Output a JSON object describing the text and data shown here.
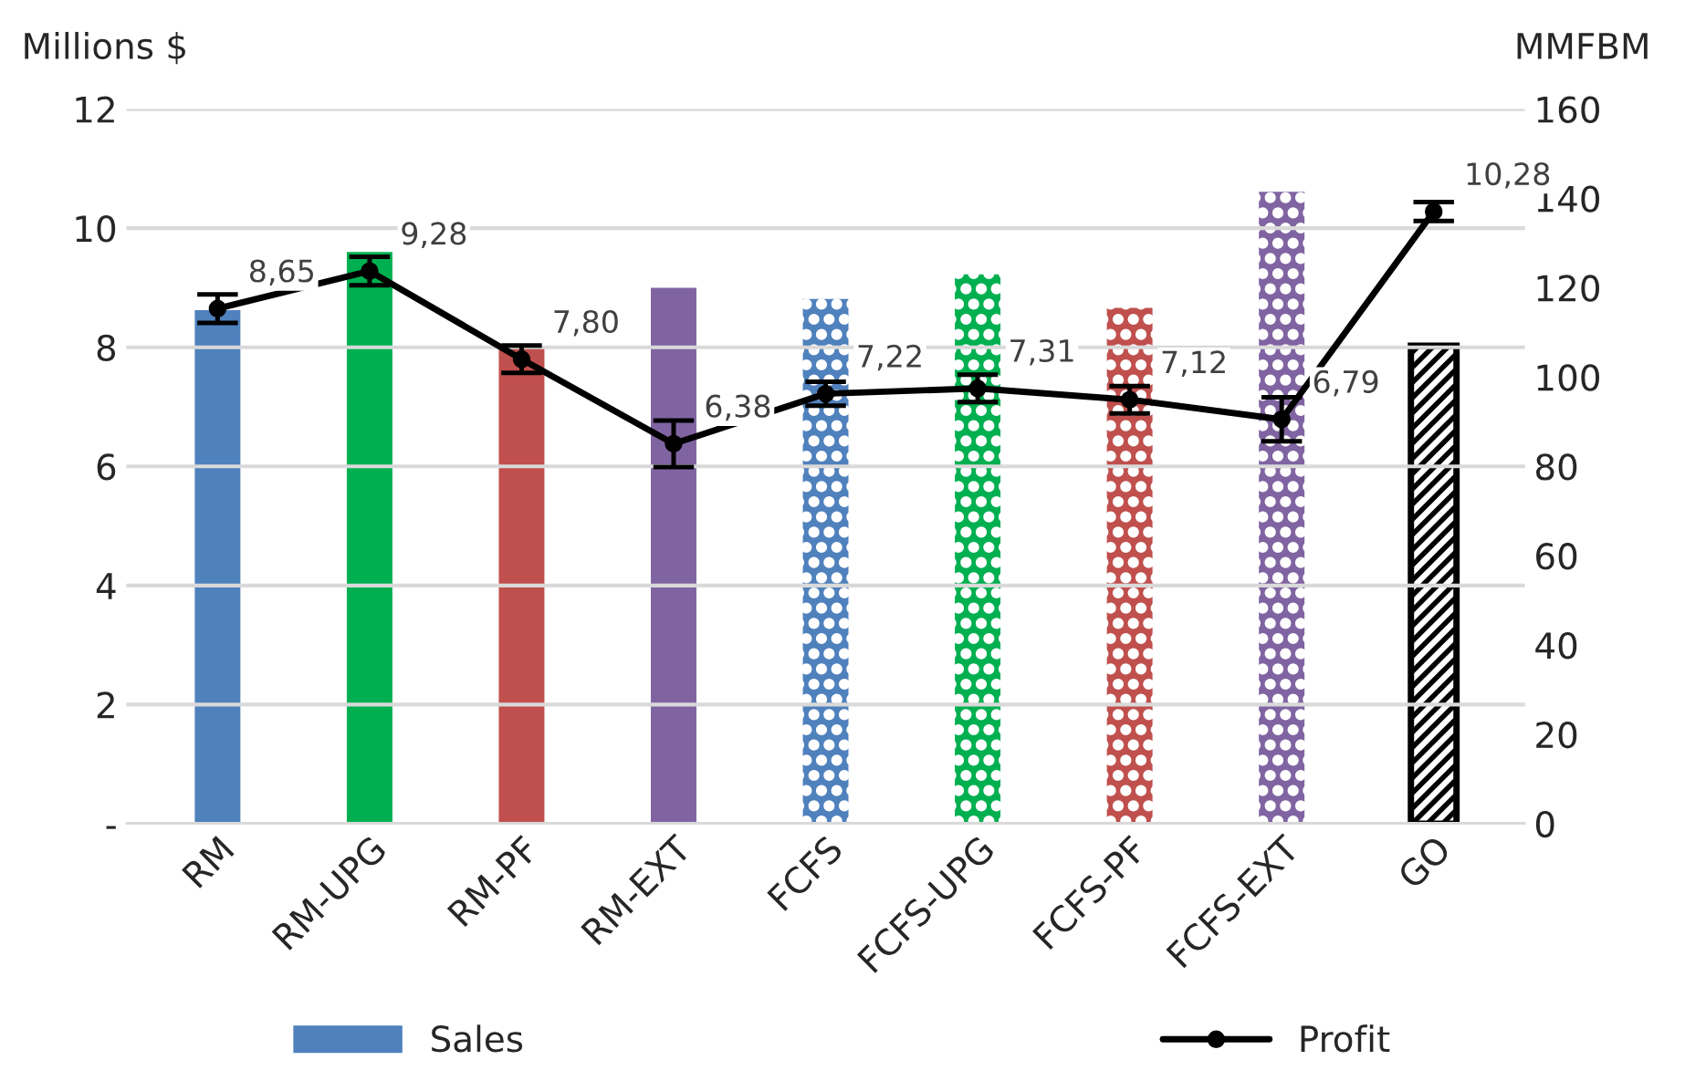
{
  "chart_data": {
    "type": "bar",
    "categories": [
      "RM",
      "RM-UPG",
      "RM-PF",
      "RM-EXT",
      "FCFS",
      "FCFS-UPG",
      "FCFS-PF",
      "FCFS-EXT",
      "GO"
    ],
    "series": [
      {
        "name": "Sales",
        "axis": "y2",
        "color": "#4f81bd",
        "colors": [
          "#4f81bd",
          "#00b050",
          "#c0504d",
          "#8064a2",
          "#4f81bd",
          "#00b050",
          "#c0504d",
          "#8064a2",
          "#000000"
        ],
        "values": [
          115,
          128,
          107,
          120,
          117.5,
          123,
          115.5,
          141.5,
          107
        ]
      },
      {
        "name": "Profit",
        "type": "line",
        "axis": "y",
        "color": "#000000",
        "marker": "circle",
        "line_style": "solid",
        "values": [
          8.65,
          9.28,
          7.8,
          6.38,
          7.22,
          7.31,
          7.12,
          6.79,
          10.28
        ],
        "errors": [
          0.24,
          0.24,
          0.23,
          0.39,
          0.2,
          0.23,
          0.23,
          0.37,
          0.16
        ],
        "value_labels": [
          "8,65",
          "9,28",
          "7,80",
          "6,38",
          "7,22",
          "7,31",
          "7,12",
          "6,79",
          "10,28"
        ]
      }
    ],
    "ylabel": "Millions $",
    "y2label": "MMFBM",
    "ylim": [
      0,
      12
    ],
    "yticks": [
      {
        "value": 0,
        "label": "-"
      },
      2,
      4,
      6,
      8,
      10,
      12
    ],
    "y2lim": [
      0,
      160
    ],
    "y2ticks": [
      0,
      20,
      40,
      60,
      80,
      100,
      120,
      140,
      160
    ],
    "grid": "y",
    "legend": "bottom"
  }
}
